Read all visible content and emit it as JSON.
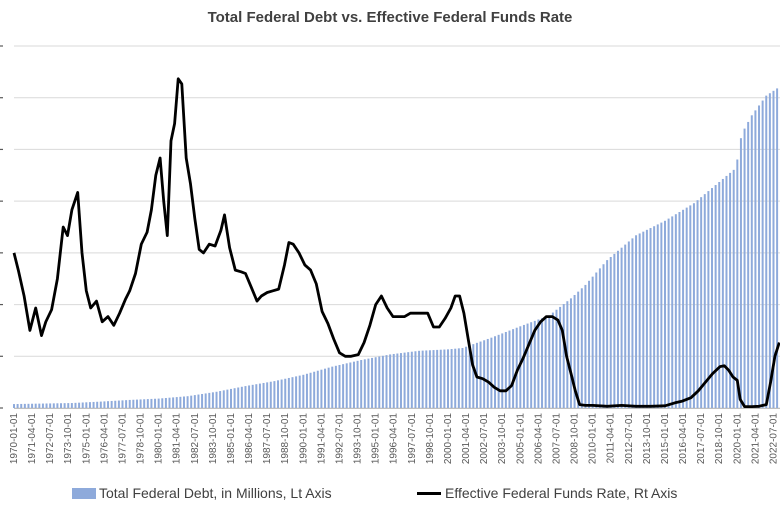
{
  "chart_data": {
    "type": "bar+line",
    "title": "Total Federal Debt vs. Effective Federal Funds Rate",
    "colors": {
      "debt": "#8eaadb",
      "rate": "#000000",
      "grid": "#d9d9d9"
    },
    "grid": true,
    "legend_position": "bottom",
    "x_tick_labels": [
      "1970-01-01",
      "1971-04-01",
      "1972-07-01",
      "1973-10-01",
      "1975-01-01",
      "1976-04-01",
      "1977-07-01",
      "1978-10-01",
      "1980-01-01",
      "1981-04-01",
      "1982-07-01",
      "1983-10-01",
      "1985-01-01",
      "1986-04-01",
      "1987-07-01",
      "1988-10-01",
      "1990-01-01",
      "1991-04-01",
      "1992-07-01",
      "1993-10-01",
      "1995-01-01",
      "1996-04-01",
      "1997-07-01",
      "1998-10-01",
      "2000-01-01",
      "2001-04-01",
      "2002-07-01",
      "2003-10-01",
      "2005-01-01",
      "2006-04-01",
      "2007-07-01",
      "2008-10-01",
      "2010-01-01",
      "2011-04-01",
      "2012-07-01",
      "2013-10-01",
      "2015-01-01",
      "2016-04-01",
      "2017-07-01",
      "2018-10-01",
      "2020-01-01",
      "2021-04-01",
      "2022-07-01"
    ],
    "series": [
      {
        "name": "Total Federal Debt, in Millions, Lt Axis",
        "kind": "bar",
        "axis": "left",
        "ylim": [
          0,
          35000000
        ],
        "x": [
          1970,
          1972,
          1974,
          1976,
          1978,
          1980,
          1982,
          1984,
          1986,
          1988,
          1990,
          1992,
          1994,
          1996,
          1998,
          2000,
          2001,
          2003,
          2005,
          2007,
          2008.5,
          2009.5,
          2011,
          2013,
          2015,
          2017,
          2019.9,
          2020.3,
          2021,
          2022,
          2022.75
        ],
        "values": [
          380000,
          430000,
          480000,
          620000,
          780000,
          910000,
          1140000,
          1570000,
          2120000,
          2600000,
          3210000,
          4000000,
          4640000,
          5180000,
          5530000,
          5670000,
          5800000,
          6800000,
          7900000,
          8950000,
          10600000,
          11900000,
          14300000,
          16700000,
          18100000,
          19800000,
          23200000,
          26500000,
          28300000,
          30200000,
          30900000
        ]
      },
      {
        "name": "Effective Federal Funds Rate, Rt Axis",
        "kind": "line",
        "axis": "right",
        "ylim": [
          0,
          21
        ],
        "x": [
          1970.0,
          1970.3,
          1970.7,
          1971.1,
          1971.5,
          1971.9,
          1972.2,
          1972.6,
          1973.0,
          1973.4,
          1973.7,
          1974.0,
          1974.4,
          1974.7,
          1975.0,
          1975.3,
          1975.7,
          1976.1,
          1976.5,
          1976.9,
          1977.3,
          1977.7,
          1978.0,
          1978.4,
          1978.8,
          1979.2,
          1979.5,
          1979.8,
          1980.1,
          1980.35,
          1980.6,
          1980.85,
          1981.1,
          1981.35,
          1981.6,
          1981.9,
          1982.2,
          1982.5,
          1982.8,
          1983.1,
          1983.5,
          1983.9,
          1984.3,
          1984.55,
          1984.9,
          1985.3,
          1985.7,
          1986.0,
          1986.4,
          1986.8,
          1987.1,
          1987.5,
          1987.9,
          1988.3,
          1988.7,
          1989.0,
          1989.3,
          1989.7,
          1990.1,
          1990.5,
          1990.9,
          1991.3,
          1991.7,
          1992.1,
          1992.5,
          1992.9,
          1993.3,
          1993.8,
          1994.2,
          1994.6,
          1995.0,
          1995.4,
          1995.8,
          1996.2,
          1996.6,
          1997.0,
          1997.4,
          1997.8,
          1998.2,
          1998.6,
          1999.0,
          1999.4,
          1999.8,
          2000.2,
          2000.5,
          2000.8,
          2001.1,
          2001.4,
          2001.7,
          2002.0,
          2002.4,
          2002.8,
          2003.2,
          2003.6,
          2004.0,
          2004.4,
          2004.8,
          2005.2,
          2005.6,
          2006.0,
          2006.4,
          2006.8,
          2007.2,
          2007.6,
          2007.9,
          2008.2,
          2008.5,
          2008.8,
          2009.1,
          2009.5,
          2010.0,
          2011.0,
          2012.0,
          2013.0,
          2014.0,
          2015.0,
          2015.7,
          2016.2,
          2016.8,
          2017.3,
          2017.8,
          2018.3,
          2018.8,
          2019.1,
          2019.4,
          2019.7,
          2020.0,
          2020.2,
          2020.5,
          2021.0,
          2021.5,
          2022.0,
          2022.3,
          2022.6,
          2022.9
        ],
        "values": [
          9.0,
          8.0,
          6.5,
          4.5,
          5.8,
          4.2,
          5.0,
          5.7,
          7.5,
          10.5,
          10.0,
          11.5,
          12.5,
          9.0,
          6.8,
          5.8,
          6.2,
          5.0,
          5.3,
          4.8,
          5.5,
          6.3,
          6.8,
          7.8,
          9.5,
          10.2,
          11.5,
          13.5,
          14.5,
          12.0,
          10.0,
          15.5,
          16.5,
          19.1,
          18.8,
          14.5,
          13.0,
          11.0,
          9.2,
          9.0,
          9.5,
          9.4,
          10.3,
          11.2,
          9.3,
          8.0,
          7.9,
          7.8,
          7.0,
          6.2,
          6.5,
          6.7,
          6.8,
          6.9,
          8.3,
          9.6,
          9.5,
          9.0,
          8.3,
          8.0,
          7.2,
          5.6,
          4.9,
          4.0,
          3.2,
          3.0,
          3.0,
          3.1,
          3.8,
          4.8,
          6.0,
          6.5,
          5.8,
          5.3,
          5.3,
          5.3,
          5.5,
          5.5,
          5.5,
          5.5,
          4.7,
          4.7,
          5.2,
          5.8,
          6.5,
          6.5,
          5.5,
          4.0,
          2.5,
          1.8,
          1.7,
          1.5,
          1.2,
          1.0,
          1.0,
          1.3,
          2.2,
          2.9,
          3.7,
          4.5,
          5.0,
          5.3,
          5.3,
          5.1,
          4.5,
          3.0,
          2.0,
          1.0,
          0.2,
          0.15,
          0.15,
          0.1,
          0.15,
          0.1,
          0.1,
          0.13,
          0.3,
          0.4,
          0.6,
          1.0,
          1.5,
          2.0,
          2.4,
          2.45,
          2.2,
          1.8,
          1.6,
          0.5,
          0.08,
          0.08,
          0.1,
          0.2,
          1.5,
          3.0,
          3.8
        ]
      }
    ]
  }
}
